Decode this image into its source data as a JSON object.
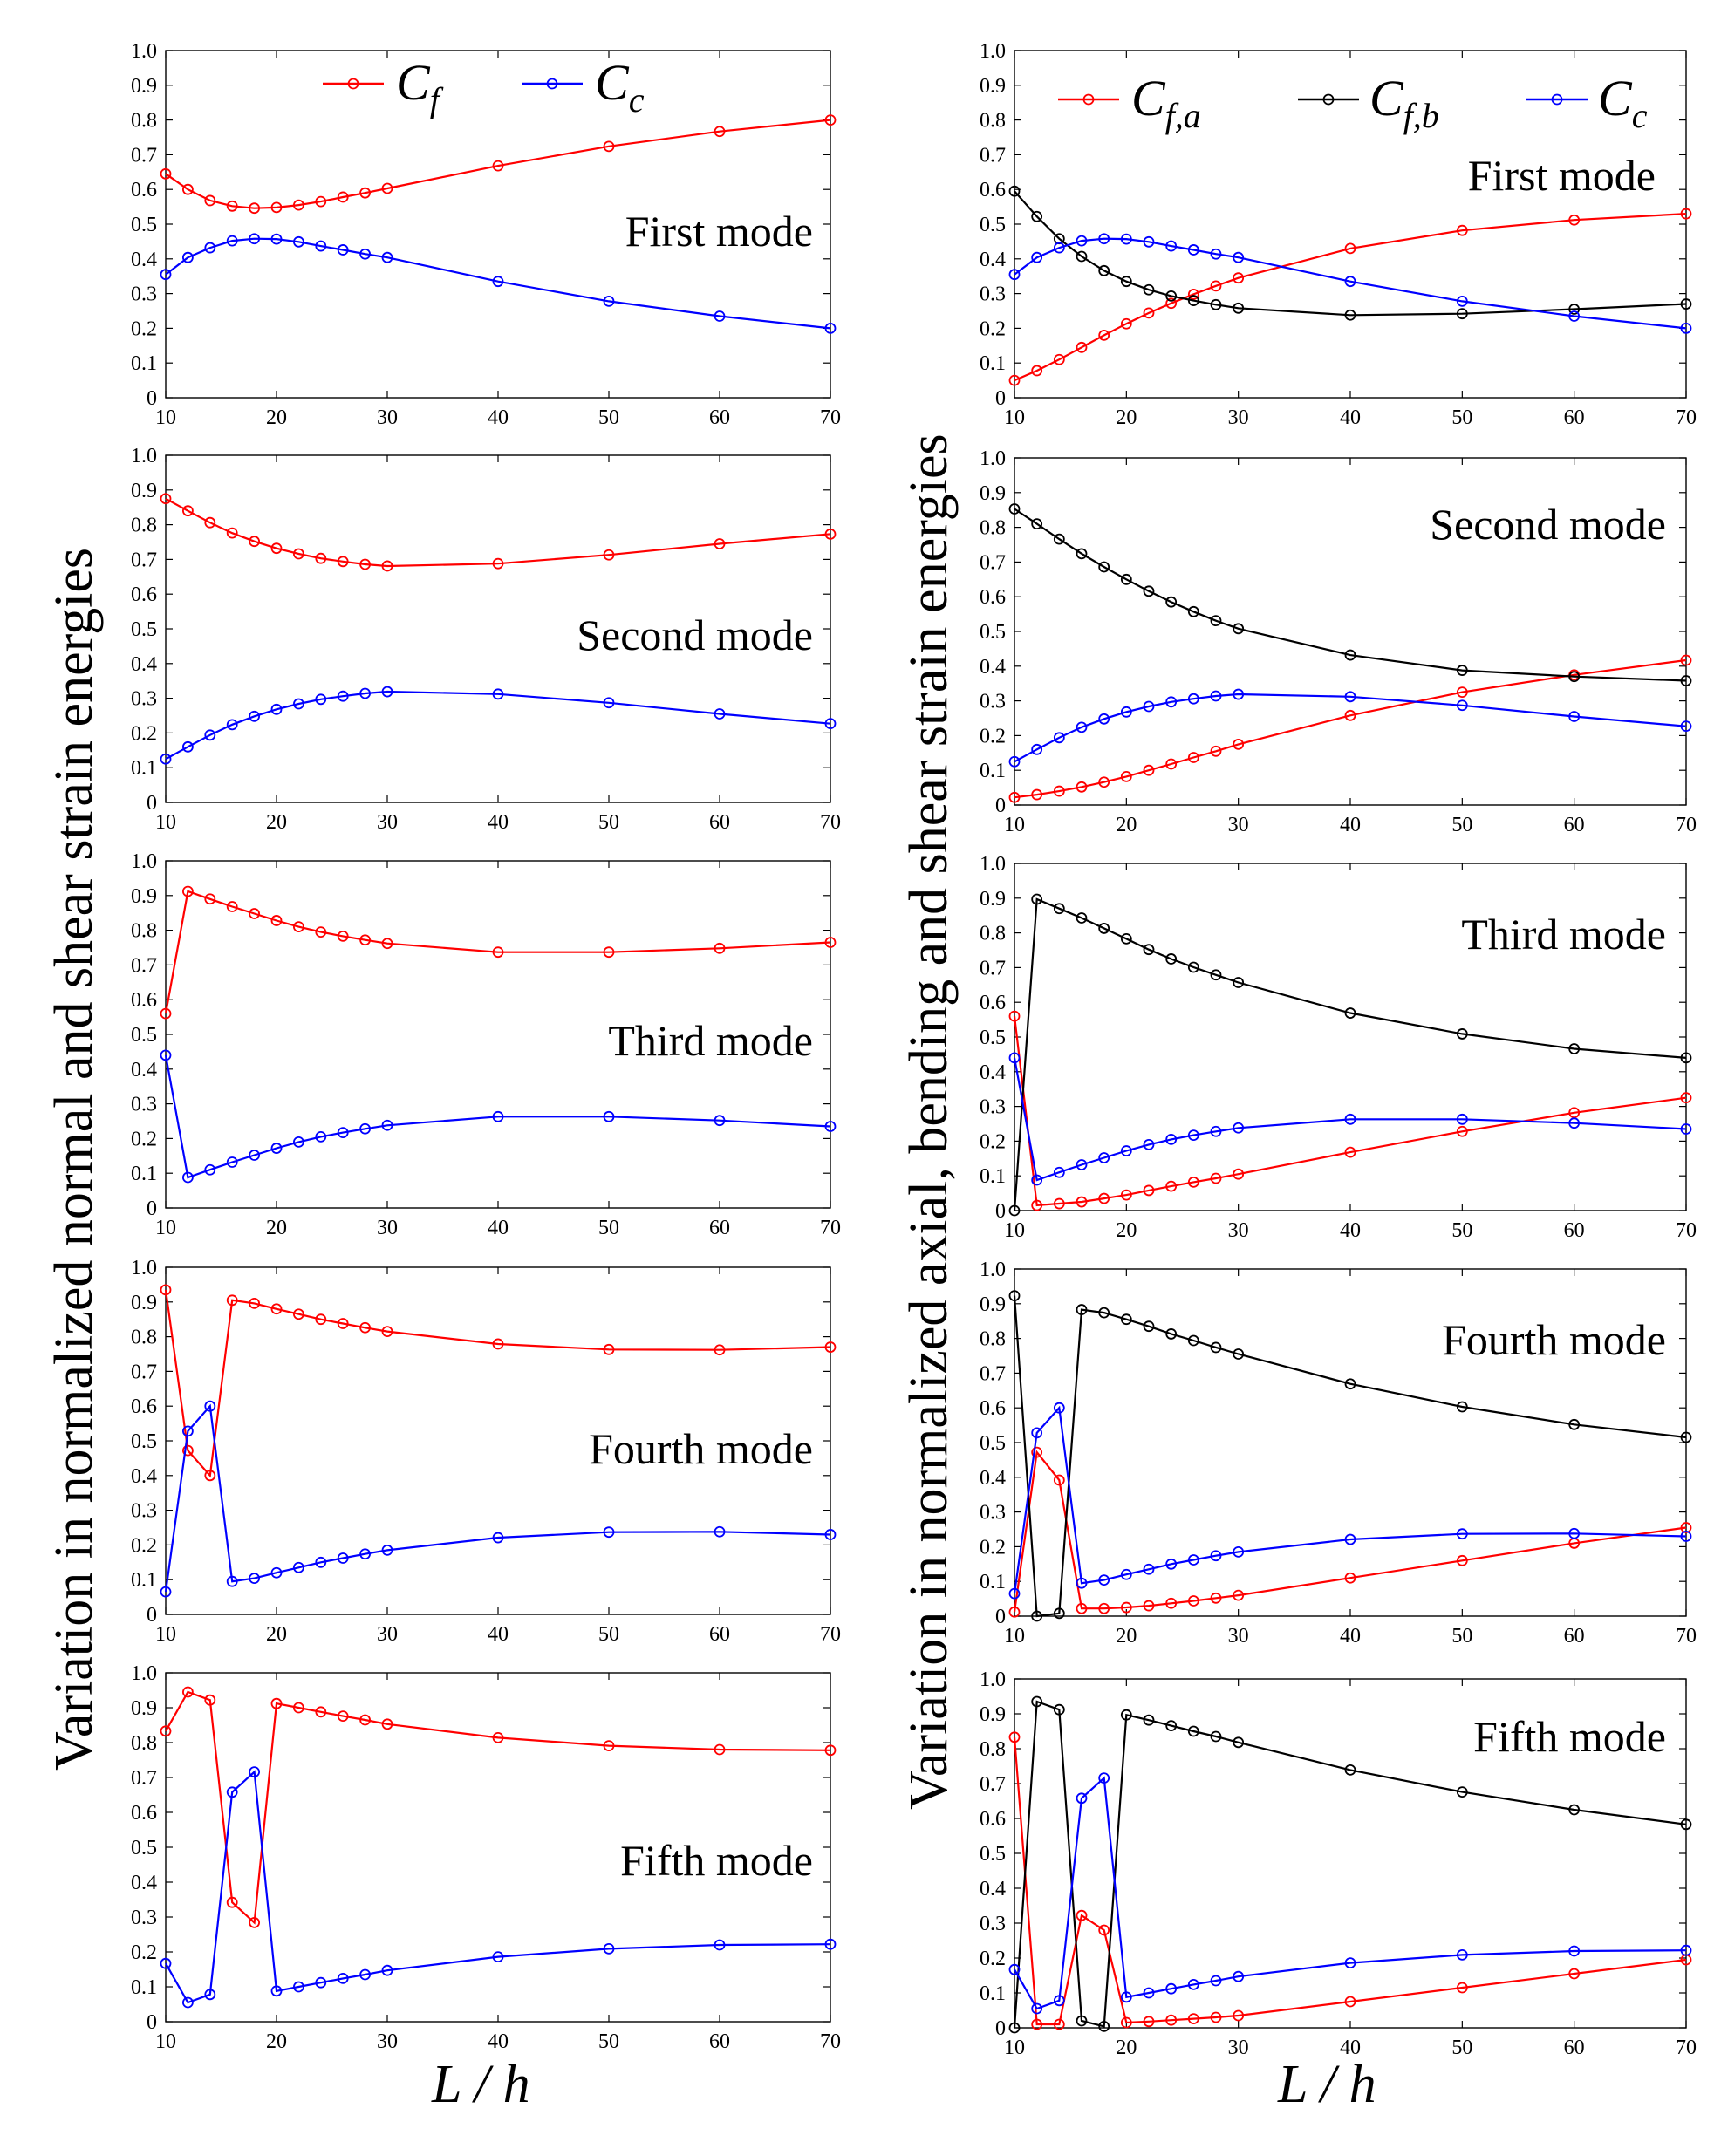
{
  "figure": {
    "left_ylabel": "Variation in normalized normal and shear strain energies",
    "right_ylabel": "Variation in normalized axial, bending and shear strain energies",
    "left_xlabel": "L / h",
    "right_xlabel": "L / h"
  },
  "colors": {
    "red": "#ff0000",
    "blue": "#0000ff",
    "black": "#000000"
  },
  "chart_data": [
    {
      "id": "L1",
      "type": "line",
      "title": "",
      "mode_label": "First mode",
      "xlabel": "L / h",
      "ylabel": "",
      "xlim": [
        10,
        70
      ],
      "ylim": [
        0,
        1
      ],
      "xticks": [
        "10",
        "20",
        "30",
        "40",
        "50",
        "60",
        "70"
      ],
      "yticks": [
        "0",
        "0.1",
        "0.2",
        "0.3",
        "0.4",
        "0.5",
        "0.6",
        "0.7",
        "0.8",
        "0.9",
        "1.0"
      ],
      "legend": [
        "C_f",
        "C_c"
      ],
      "x": [
        10,
        12,
        14,
        16,
        18,
        20,
        22,
        24,
        26,
        28,
        30,
        40,
        50,
        60,
        70
      ],
      "series": [
        {
          "name": "C_f",
          "color": "#ff0000",
          "values": [
            0.645,
            0.6,
            0.568,
            0.552,
            0.546,
            0.548,
            0.555,
            0.565,
            0.578,
            0.59,
            0.603,
            0.668,
            0.724,
            0.767,
            0.8
          ]
        },
        {
          "name": "C_c",
          "color": "#0000ff",
          "values": [
            0.355,
            0.404,
            0.432,
            0.452,
            0.458,
            0.457,
            0.449,
            0.437,
            0.426,
            0.414,
            0.404,
            0.335,
            0.278,
            0.235,
            0.2
          ]
        }
      ]
    },
    {
      "id": "L2",
      "type": "line",
      "title": "",
      "mode_label": "Second mode",
      "xlabel": "L / h",
      "ylabel": "",
      "xlim": [
        10,
        70
      ],
      "ylim": [
        0,
        1
      ],
      "xticks": [
        "10",
        "20",
        "30",
        "40",
        "50",
        "60",
        "70"
      ],
      "yticks": [
        "0",
        "0.1",
        "0.2",
        "0.3",
        "0.4",
        "0.5",
        "0.6",
        "0.7",
        "0.8",
        "0.9",
        "1.0"
      ],
      "legend": [],
      "x": [
        10,
        12,
        14,
        16,
        18,
        20,
        22,
        24,
        26,
        28,
        30,
        40,
        50,
        60,
        70
      ],
      "series": [
        {
          "name": "C_f",
          "color": "#ff0000",
          "values": [
            0.875,
            0.84,
            0.806,
            0.776,
            0.752,
            0.732,
            0.716,
            0.703,
            0.694,
            0.686,
            0.681,
            0.688,
            0.713,
            0.745,
            0.773
          ]
        },
        {
          "name": "C_c",
          "color": "#0000ff",
          "values": [
            0.125,
            0.16,
            0.194,
            0.224,
            0.248,
            0.268,
            0.284,
            0.297,
            0.306,
            0.314,
            0.319,
            0.312,
            0.287,
            0.255,
            0.227
          ]
        }
      ]
    },
    {
      "id": "L3",
      "type": "line",
      "title": "",
      "mode_label": "Third mode",
      "xlabel": "L / h",
      "ylabel": "",
      "xlim": [
        10,
        70
      ],
      "ylim": [
        0,
        1
      ],
      "xticks": [
        "10",
        "20",
        "30",
        "40",
        "50",
        "60",
        "70"
      ],
      "yticks": [
        "0",
        "0.1",
        "0.2",
        "0.3",
        "0.4",
        "0.5",
        "0.6",
        "0.7",
        "0.8",
        "0.9",
        "1.0"
      ],
      "legend": [],
      "x": [
        10,
        12,
        14,
        16,
        18,
        20,
        22,
        24,
        26,
        28,
        30,
        40,
        50,
        60,
        70
      ],
      "series": [
        {
          "name": "C_f",
          "color": "#ff0000",
          "values": [
            0.56,
            0.912,
            0.89,
            0.868,
            0.848,
            0.828,
            0.81,
            0.795,
            0.783,
            0.772,
            0.762,
            0.737,
            0.737,
            0.748,
            0.765
          ]
        },
        {
          "name": "C_c",
          "color": "#0000ff",
          "values": [
            0.44,
            0.088,
            0.11,
            0.132,
            0.152,
            0.172,
            0.19,
            0.205,
            0.217,
            0.228,
            0.238,
            0.263,
            0.263,
            0.252,
            0.235
          ]
        }
      ]
    },
    {
      "id": "L4",
      "type": "line",
      "title": "",
      "mode_label": "Fourth mode",
      "xlabel": "L / h",
      "ylabel": "",
      "xlim": [
        10,
        70
      ],
      "ylim": [
        0,
        1
      ],
      "xticks": [
        "10",
        "20",
        "30",
        "40",
        "50",
        "60",
        "70"
      ],
      "yticks": [
        "0",
        "0.1",
        "0.2",
        "0.3",
        "0.4",
        "0.5",
        "0.6",
        "0.7",
        "0.8",
        "0.9",
        "1.0"
      ],
      "legend": [],
      "x": [
        10,
        12,
        14,
        16,
        18,
        20,
        22,
        24,
        26,
        28,
        30,
        40,
        50,
        60,
        70
      ],
      "series": [
        {
          "name": "C_f",
          "color": "#ff0000",
          "values": [
            0.935,
            0.472,
            0.4,
            0.905,
            0.896,
            0.88,
            0.865,
            0.85,
            0.838,
            0.826,
            0.815,
            0.779,
            0.763,
            0.762,
            0.77
          ]
        },
        {
          "name": "C_c",
          "color": "#0000ff",
          "values": [
            0.065,
            0.528,
            0.6,
            0.095,
            0.104,
            0.12,
            0.135,
            0.15,
            0.162,
            0.174,
            0.185,
            0.221,
            0.237,
            0.238,
            0.23
          ]
        }
      ]
    },
    {
      "id": "L5",
      "type": "line",
      "title": "",
      "mode_label": "Fifth mode",
      "xlabel": "L / h",
      "ylabel": "",
      "xlim": [
        10,
        70
      ],
      "ylim": [
        0,
        1
      ],
      "xticks": [
        "10",
        "20",
        "30",
        "40",
        "50",
        "60",
        "70"
      ],
      "yticks": [
        "0",
        "0.1",
        "0.2",
        "0.3",
        "0.4",
        "0.5",
        "0.6",
        "0.7",
        "0.8",
        "0.9",
        "1.0"
      ],
      "legend": [],
      "x": [
        10,
        12,
        14,
        16,
        18,
        20,
        22,
        24,
        26,
        28,
        30,
        40,
        50,
        60,
        70
      ],
      "series": [
        {
          "name": "C_f",
          "color": "#ff0000",
          "values": [
            0.833,
            0.945,
            0.922,
            0.342,
            0.284,
            0.912,
            0.9,
            0.888,
            0.876,
            0.865,
            0.853,
            0.814,
            0.791,
            0.78,
            0.778
          ]
        },
        {
          "name": "C_c",
          "color": "#0000ff",
          "values": [
            0.167,
            0.055,
            0.078,
            0.658,
            0.716,
            0.088,
            0.1,
            0.112,
            0.124,
            0.135,
            0.147,
            0.186,
            0.209,
            0.22,
            0.222
          ]
        }
      ]
    },
    {
      "id": "R1",
      "type": "line",
      "title": "",
      "mode_label": "First mode",
      "xlabel": "L / h",
      "ylabel": "",
      "xlim": [
        10,
        70
      ],
      "ylim": [
        0,
        1
      ],
      "xticks": [
        "10",
        "20",
        "30",
        "40",
        "50",
        "60",
        "70"
      ],
      "yticks": [
        "0",
        "0.1",
        "0.2",
        "0.3",
        "0.4",
        "0.5",
        "0.6",
        "0.7",
        "0.8",
        "0.9",
        "1.0"
      ],
      "legend": [
        "C_f,a",
        "C_f,b",
        "C_c"
      ],
      "x": [
        10,
        12,
        14,
        16,
        18,
        20,
        22,
        24,
        26,
        28,
        30,
        40,
        50,
        60,
        70
      ],
      "series": [
        {
          "name": "C_f,a",
          "color": "#ff0000",
          "values": [
            0.05,
            0.078,
            0.11,
            0.145,
            0.18,
            0.213,
            0.244,
            0.272,
            0.298,
            0.322,
            0.345,
            0.43,
            0.482,
            0.512,
            0.53
          ]
        },
        {
          "name": "C_f,b",
          "color": "#000000",
          "values": [
            0.595,
            0.522,
            0.458,
            0.407,
            0.366,
            0.335,
            0.311,
            0.293,
            0.28,
            0.268,
            0.258,
            0.238,
            0.242,
            0.255,
            0.27
          ]
        },
        {
          "name": "C_c",
          "color": "#0000ff",
          "values": [
            0.355,
            0.404,
            0.432,
            0.452,
            0.458,
            0.457,
            0.449,
            0.437,
            0.426,
            0.414,
            0.404,
            0.335,
            0.278,
            0.235,
            0.2
          ]
        }
      ]
    },
    {
      "id": "R2",
      "type": "line",
      "title": "",
      "mode_label": "Second mode",
      "xlabel": "L / h",
      "ylabel": "",
      "xlim": [
        10,
        70
      ],
      "ylim": [
        0,
        1
      ],
      "xticks": [
        "10",
        "20",
        "30",
        "40",
        "50",
        "60",
        "70"
      ],
      "yticks": [
        "0",
        "0.1",
        "0.2",
        "0.3",
        "0.4",
        "0.5",
        "0.6",
        "0.7",
        "0.8",
        "0.9",
        "1.0"
      ],
      "legend": [],
      "x": [
        10,
        12,
        14,
        16,
        18,
        20,
        22,
        24,
        26,
        28,
        30,
        40,
        50,
        60,
        70
      ],
      "series": [
        {
          "name": "C_f,a",
          "color": "#ff0000",
          "values": [
            0.022,
            0.03,
            0.04,
            0.052,
            0.066,
            0.082,
            0.1,
            0.118,
            0.137,
            0.155,
            0.175,
            0.258,
            0.325,
            0.375,
            0.417
          ]
        },
        {
          "name": "C_f,b",
          "color": "#000000",
          "values": [
            0.853,
            0.81,
            0.766,
            0.724,
            0.686,
            0.65,
            0.616,
            0.585,
            0.557,
            0.531,
            0.508,
            0.432,
            0.388,
            0.37,
            0.358
          ]
        },
        {
          "name": "C_c",
          "color": "#0000ff",
          "values": [
            0.125,
            0.16,
            0.194,
            0.224,
            0.248,
            0.268,
            0.284,
            0.297,
            0.306,
            0.314,
            0.319,
            0.312,
            0.287,
            0.255,
            0.227
          ]
        }
      ]
    },
    {
      "id": "R3",
      "type": "line",
      "title": "",
      "mode_label": "Third mode",
      "xlabel": "L / h",
      "ylabel": "",
      "xlim": [
        10,
        70
      ],
      "ylim": [
        0,
        1
      ],
      "xticks": [
        "10",
        "20",
        "30",
        "40",
        "50",
        "60",
        "70"
      ],
      "yticks": [
        "0",
        "0.1",
        "0.2",
        "0.3",
        "0.4",
        "0.5",
        "0.6",
        "0.7",
        "0.8",
        "0.9",
        "1.0"
      ],
      "legend": [],
      "x": [
        10,
        12,
        14,
        16,
        18,
        20,
        22,
        24,
        26,
        28,
        30,
        40,
        50,
        60,
        70
      ],
      "series": [
        {
          "name": "C_f,a",
          "color": "#ff0000",
          "values": [
            0.56,
            0.015,
            0.02,
            0.025,
            0.035,
            0.045,
            0.058,
            0.07,
            0.082,
            0.093,
            0.105,
            0.168,
            0.228,
            0.282,
            0.325
          ]
        },
        {
          "name": "C_f,b",
          "color": "#000000",
          "values": [
            0.0,
            0.897,
            0.87,
            0.843,
            0.813,
            0.783,
            0.752,
            0.725,
            0.701,
            0.679,
            0.657,
            0.569,
            0.509,
            0.466,
            0.44
          ]
        },
        {
          "name": "C_c",
          "color": "#0000ff",
          "values": [
            0.44,
            0.088,
            0.11,
            0.132,
            0.152,
            0.172,
            0.19,
            0.205,
            0.217,
            0.228,
            0.238,
            0.263,
            0.263,
            0.252,
            0.235
          ]
        }
      ]
    },
    {
      "id": "R4",
      "type": "line",
      "title": "",
      "mode_label": "Fourth mode",
      "xlabel": "L / h",
      "ylabel": "",
      "xlim": [
        10,
        70
      ],
      "ylim": [
        0,
        1
      ],
      "xticks": [
        "10",
        "20",
        "30",
        "40",
        "50",
        "60",
        "70"
      ],
      "yticks": [
        "0",
        "0.1",
        "0.2",
        "0.3",
        "0.4",
        "0.5",
        "0.6",
        "0.7",
        "0.8",
        "0.9",
        "1.0"
      ],
      "legend": [],
      "x": [
        10,
        12,
        14,
        16,
        18,
        20,
        22,
        24,
        26,
        28,
        30,
        40,
        50,
        60,
        70
      ],
      "series": [
        {
          "name": "C_f,a",
          "color": "#ff0000",
          "values": [
            0.012,
            0.472,
            0.392,
            0.022,
            0.022,
            0.025,
            0.03,
            0.037,
            0.044,
            0.052,
            0.06,
            0.11,
            0.16,
            0.21,
            0.255
          ]
        },
        {
          "name": "C_f,b",
          "color": "#000000",
          "values": [
            0.923,
            0.0,
            0.008,
            0.883,
            0.874,
            0.855,
            0.835,
            0.813,
            0.794,
            0.774,
            0.755,
            0.669,
            0.603,
            0.552,
            0.515
          ]
        },
        {
          "name": "C_c",
          "color": "#0000ff",
          "values": [
            0.065,
            0.528,
            0.6,
            0.095,
            0.104,
            0.12,
            0.135,
            0.15,
            0.162,
            0.174,
            0.185,
            0.221,
            0.237,
            0.238,
            0.23
          ]
        }
      ]
    },
    {
      "id": "R5",
      "type": "line",
      "title": "",
      "mode_label": "Fifth mode",
      "xlabel": "L / h",
      "ylabel": "",
      "xlim": [
        10,
        70
      ],
      "ylim": [
        0,
        1
      ],
      "xticks": [
        "10",
        "20",
        "30",
        "40",
        "50",
        "60",
        "70"
      ],
      "yticks": [
        "0",
        "0.1",
        "0.2",
        "0.3",
        "0.4",
        "0.5",
        "0.6",
        "0.7",
        "0.8",
        "0.9",
        "1.0"
      ],
      "legend": [],
      "x": [
        10,
        12,
        14,
        16,
        18,
        20,
        22,
        24,
        26,
        28,
        30,
        40,
        50,
        60,
        70
      ],
      "series": [
        {
          "name": "C_f,a",
          "color": "#ff0000",
          "values": [
            0.833,
            0.01,
            0.01,
            0.322,
            0.28,
            0.015,
            0.018,
            0.022,
            0.026,
            0.03,
            0.035,
            0.075,
            0.115,
            0.155,
            0.195
          ]
        },
        {
          "name": "C_f,b",
          "color": "#000000",
          "values": [
            0.0,
            0.935,
            0.912,
            0.02,
            0.004,
            0.897,
            0.882,
            0.866,
            0.85,
            0.835,
            0.818,
            0.739,
            0.676,
            0.625,
            0.583
          ]
        },
        {
          "name": "C_c",
          "color": "#0000ff",
          "values": [
            0.167,
            0.055,
            0.078,
            0.658,
            0.716,
            0.088,
            0.1,
            0.112,
            0.124,
            0.135,
            0.147,
            0.186,
            0.209,
            0.22,
            0.222
          ]
        }
      ]
    }
  ]
}
